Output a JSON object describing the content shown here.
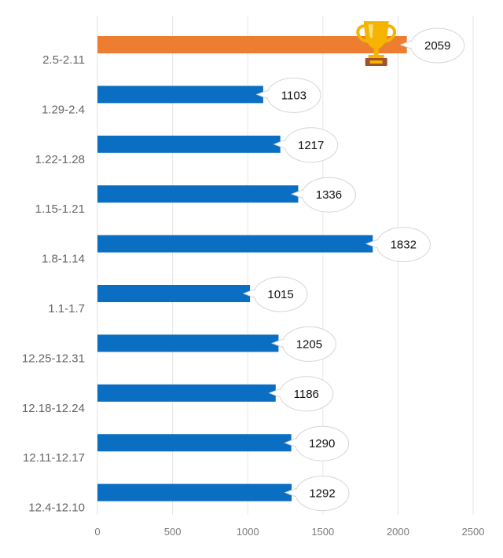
{
  "chart_data": {
    "type": "bar",
    "orientation": "horizontal",
    "categories": [
      "2.5-2.11",
      "1.29-2.4",
      "1.22-1.28",
      "1.15-1.21",
      "1.8-1.14",
      "1.1-1.7",
      "12.25-12.31",
      "12.18-12.24",
      "12.11-12.17",
      "12.4-12.10"
    ],
    "values": [
      2059,
      1103,
      1217,
      1336,
      1832,
      1015,
      1205,
      1186,
      1290,
      1292
    ],
    "highlight_index": 0,
    "title": "",
    "xlabel": "",
    "ylabel": "",
    "xlim": [
      0,
      2500
    ],
    "xticks": [
      0,
      500,
      1000,
      1500,
      2000,
      2500
    ],
    "grid": "vertical",
    "data_labels": "speech-bubble",
    "highlight_icon": "trophy-icon",
    "colors": {
      "bar": "#0a6fc2",
      "highlight": "#ed7d31",
      "grid": "#e6e6e6",
      "bubble_fill": "#ffffff",
      "bubble_stroke": "#d6d6d6",
      "trophy_gold": "#f4b400",
      "trophy_base": "#a0522d"
    }
  }
}
